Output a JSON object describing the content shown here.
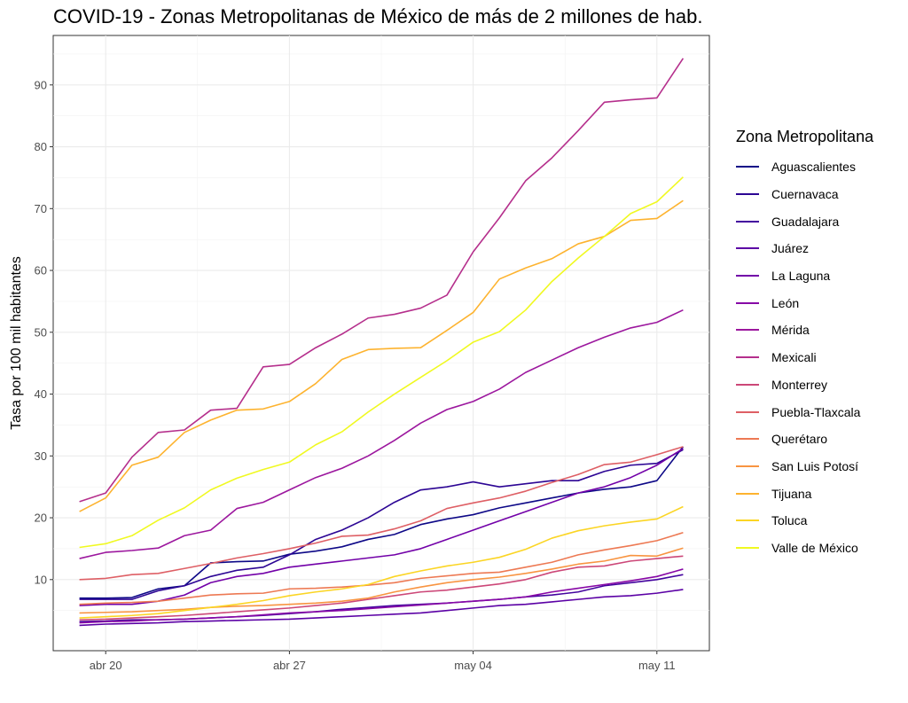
{
  "chart_data": {
    "type": "line",
    "title": "COVID-19 - Zonas Metropolitanas de México de más de 2 millones de hab.",
    "xlabel": "",
    "ylabel": "Tasa por 100 mil habitantes",
    "x": [
      "2020-04-19",
      "2020-04-20",
      "2020-04-21",
      "2020-04-22",
      "2020-04-23",
      "2020-04-24",
      "2020-04-25",
      "2020-04-26",
      "2020-04-27",
      "2020-04-28",
      "2020-04-29",
      "2020-04-30",
      "2020-05-01",
      "2020-05-02",
      "2020-05-03",
      "2020-05-04",
      "2020-05-05",
      "2020-05-06",
      "2020-05-07",
      "2020-05-08",
      "2020-05-09",
      "2020-05-10",
      "2020-05-11",
      "2020-05-12"
    ],
    "x_ticks": [
      {
        "date": "2020-04-20",
        "label": "abr 20"
      },
      {
        "date": "2020-04-27",
        "label": "abr 27"
      },
      {
        "date": "2020-05-04",
        "label": "may 04"
      },
      {
        "date": "2020-05-11",
        "label": "may 11"
      }
    ],
    "xlim": [
      "2020-04-18",
      "2020-05-13"
    ],
    "ylim": [
      -1.5,
      98
    ],
    "y_ticks": [
      10,
      20,
      30,
      40,
      50,
      60,
      70,
      80,
      90
    ],
    "grid": true,
    "legend_title": "Zona Metropolitana",
    "legend_position": "right",
    "series": [
      {
        "name": "Aguascalientes",
        "color": "#0d0887",
        "values": [
          7.0,
          7.0,
          7.1,
          8.5,
          9.0,
          12.7,
          12.9,
          13.0,
          14.1,
          14.6,
          15.3,
          16.5,
          17.3,
          18.9,
          19.8,
          20.5,
          21.6,
          22.4,
          23.2,
          24.0,
          24.6,
          25.0,
          26.0,
          31.5
        ]
      },
      {
        "name": "Cuernavaca",
        "color": "#2c0594",
        "values": [
          6.8,
          6.8,
          6.8,
          8.2,
          9.0,
          10.5,
          11.5,
          12.0,
          14.0,
          16.5,
          18.0,
          20.0,
          22.5,
          24.5,
          25.0,
          25.8,
          25.0,
          25.5,
          26.0,
          26.0,
          27.5,
          28.5,
          28.8,
          31.0
        ]
      },
      {
        "name": "Guadalajara",
        "color": "#43039e",
        "values": [
          3.2,
          3.3,
          3.5,
          3.5,
          3.6,
          3.8,
          4.0,
          4.2,
          4.5,
          4.8,
          5.2,
          5.5,
          5.8,
          6.0,
          6.2,
          6.5,
          6.8,
          7.2,
          7.5,
          8.0,
          9.0,
          9.5,
          10.0,
          10.8
        ]
      },
      {
        "name": "Juárez",
        "color": "#5b01a5",
        "values": [
          2.6,
          2.8,
          2.9,
          3.0,
          3.2,
          3.3,
          3.4,
          3.5,
          3.6,
          3.8,
          4.0,
          4.2,
          4.4,
          4.6,
          5.0,
          5.4,
          5.8,
          6.0,
          6.4,
          6.8,
          7.2,
          7.4,
          7.8,
          8.4
        ]
      },
      {
        "name": "La Laguna",
        "color": "#7201a8",
        "values": [
          5.8,
          6.0,
          6.0,
          6.5,
          7.5,
          9.5,
          10.5,
          11.0,
          12.0,
          12.5,
          13.0,
          13.5,
          14.0,
          15.0,
          16.5,
          18.0,
          19.5,
          21.0,
          22.5,
          24.0,
          25.0,
          26.5,
          28.5,
          31.2
        ]
      },
      {
        "name": "León",
        "color": "#8707a6",
        "values": [
          3.0,
          3.2,
          3.3,
          3.5,
          3.6,
          3.8,
          4.0,
          4.3,
          4.6,
          4.8,
          5.0,
          5.3,
          5.6,
          5.9,
          6.2,
          6.5,
          6.8,
          7.2,
          8.0,
          8.6,
          9.2,
          9.8,
          10.5,
          11.7
        ]
      },
      {
        "name": "Mérida",
        "color": "#9c179e",
        "values": [
          13.4,
          14.4,
          14.7,
          15.1,
          17.1,
          18.0,
          21.5,
          22.5,
          24.5,
          26.5,
          28.0,
          30.0,
          32.5,
          35.3,
          37.5,
          38.8,
          40.8,
          43.5,
          45.5,
          47.5,
          49.2,
          50.7,
          51.6,
          53.6
        ]
      },
      {
        "name": "Mexicali",
        "color": "#b52f8c",
        "values": [
          22.6,
          24.0,
          29.8,
          33.8,
          34.2,
          37.4,
          37.7,
          44.4,
          44.8,
          47.5,
          49.7,
          52.3,
          52.9,
          53.9,
          56.0,
          63.0,
          68.5,
          74.5,
          78.2,
          82.6,
          87.2,
          87.6,
          87.9,
          94.3
        ]
      },
      {
        "name": "Monterrey",
        "color": "#cc4778",
        "values": [
          3.5,
          3.6,
          3.8,
          4.0,
          4.2,
          4.5,
          4.8,
          5.1,
          5.4,
          5.8,
          6.2,
          6.8,
          7.4,
          8.0,
          8.3,
          8.8,
          9.3,
          10.0,
          11.2,
          12.0,
          12.2,
          13.0,
          13.4,
          13.8
        ]
      },
      {
        "name": "Puebla-Tlaxcala",
        "color": "#de5f65",
        "values": [
          10.0,
          10.2,
          10.8,
          11.0,
          11.8,
          12.6,
          13.5,
          14.2,
          15.0,
          15.9,
          17.0,
          17.2,
          18.2,
          19.5,
          21.5,
          22.4,
          23.2,
          24.3,
          25.7,
          27.0,
          28.6,
          29.0,
          30.2,
          31.5
        ]
      },
      {
        "name": "Querétaro",
        "color": "#ed7953",
        "values": [
          6.0,
          6.2,
          6.3,
          6.5,
          7.0,
          7.5,
          7.7,
          7.8,
          8.5,
          8.6,
          8.8,
          9.1,
          9.5,
          10.2,
          10.6,
          11.0,
          11.2,
          12.0,
          12.8,
          14.0,
          14.8,
          15.5,
          16.3,
          17.6
        ]
      },
      {
        "name": "San Luis Potosí",
        "color": "#f89441",
        "values": [
          4.6,
          4.7,
          4.8,
          5.0,
          5.2,
          5.5,
          5.7,
          5.8,
          6.0,
          6.2,
          6.5,
          7.0,
          8.0,
          8.8,
          9.5,
          10.0,
          10.4,
          11.0,
          11.7,
          12.5,
          13.0,
          13.9,
          13.8,
          15.1
        ]
      },
      {
        "name": "Tijuana",
        "color": "#fdb32f",
        "values": [
          21.0,
          23.2,
          28.5,
          29.8,
          33.8,
          35.8,
          37.4,
          37.6,
          38.8,
          41.7,
          45.6,
          47.2,
          47.4,
          47.5,
          50.3,
          53.2,
          58.6,
          60.4,
          61.9,
          64.3,
          65.5,
          68.1,
          68.4,
          71.3
        ]
      },
      {
        "name": "Toluca",
        "color": "#fbd524",
        "values": [
          3.8,
          4.0,
          4.2,
          4.5,
          5.0,
          5.5,
          6.0,
          6.6,
          7.4,
          8.0,
          8.5,
          9.2,
          10.5,
          11.4,
          12.2,
          12.8,
          13.6,
          14.9,
          16.7,
          17.9,
          18.7,
          19.3,
          19.8,
          21.8
        ]
      },
      {
        "name": "Valle de México",
        "color": "#f0f921",
        "values": [
          15.2,
          15.8,
          17.1,
          19.6,
          21.6,
          24.5,
          26.4,
          27.8,
          29.0,
          31.8,
          33.9,
          37.1,
          40.0,
          42.7,
          45.4,
          48.4,
          50.1,
          53.6,
          58.2,
          62.0,
          65.5,
          69.2,
          71.1,
          75.1
        ]
      }
    ]
  }
}
